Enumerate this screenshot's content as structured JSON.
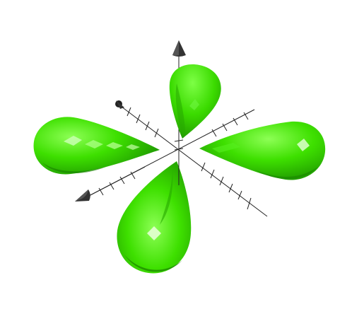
{
  "scene": {
    "type": "3d-isosurface-render",
    "background_color": "#ffffff",
    "surface_color": "#33dd00",
    "surface_highlight_color": "#ccffbb",
    "surface_shadow_color": "#1f8a00",
    "axis_color": "#222222",
    "axis_arrow_color": "#333333",
    "lobe_count": 4,
    "axes": [
      {
        "name": "vertical-axis",
        "arrow_icon": "cone-arrow-icon"
      },
      {
        "name": "left-right-axis",
        "arrow_icon": "cone-arrow-icon"
      },
      {
        "name": "depth-axis",
        "arrow_icon": "sphere-arrow-icon"
      }
    ]
  }
}
